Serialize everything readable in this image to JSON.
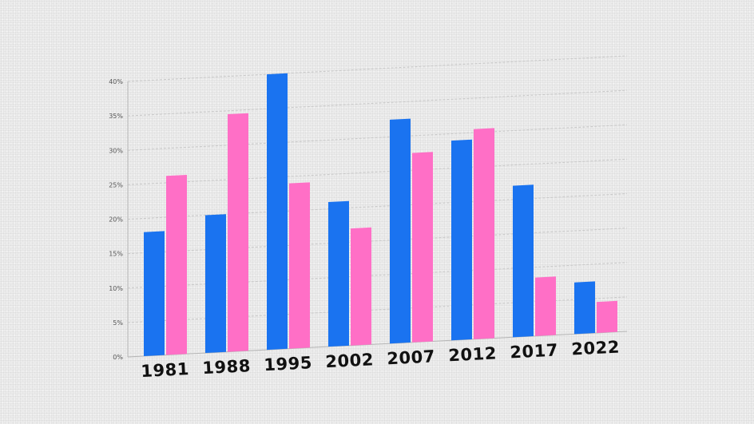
{
  "chart_data": {
    "type": "bar",
    "title": "",
    "xlabel": "",
    "ylabel": "",
    "categories": [
      "1981",
      "1988",
      "1995",
      "2002",
      "2007",
      "2012",
      "2017",
      "2022"
    ],
    "series": [
      {
        "values": [
          18,
          20,
          40,
          21,
          32.5,
          29,
          22,
          7.5
        ],
        "color": "#1a73f0"
      },
      {
        "values": [
          26,
          34.5,
          24,
          17,
          27.5,
          30.5,
          8.5,
          4.5
        ],
        "color": "#ff6fc6"
      }
    ],
    "ylim": [
      0,
      40
    ],
    "yticks": [
      0,
      5,
      10,
      15,
      20,
      25,
      30,
      35,
      40
    ],
    "ytick_labels": [
      "0%",
      "5%",
      "10%",
      "15%",
      "20%",
      "25%",
      "30%",
      "35%",
      "40%"
    ],
    "grid": true,
    "legend": "none",
    "perspective": "tilted"
  }
}
